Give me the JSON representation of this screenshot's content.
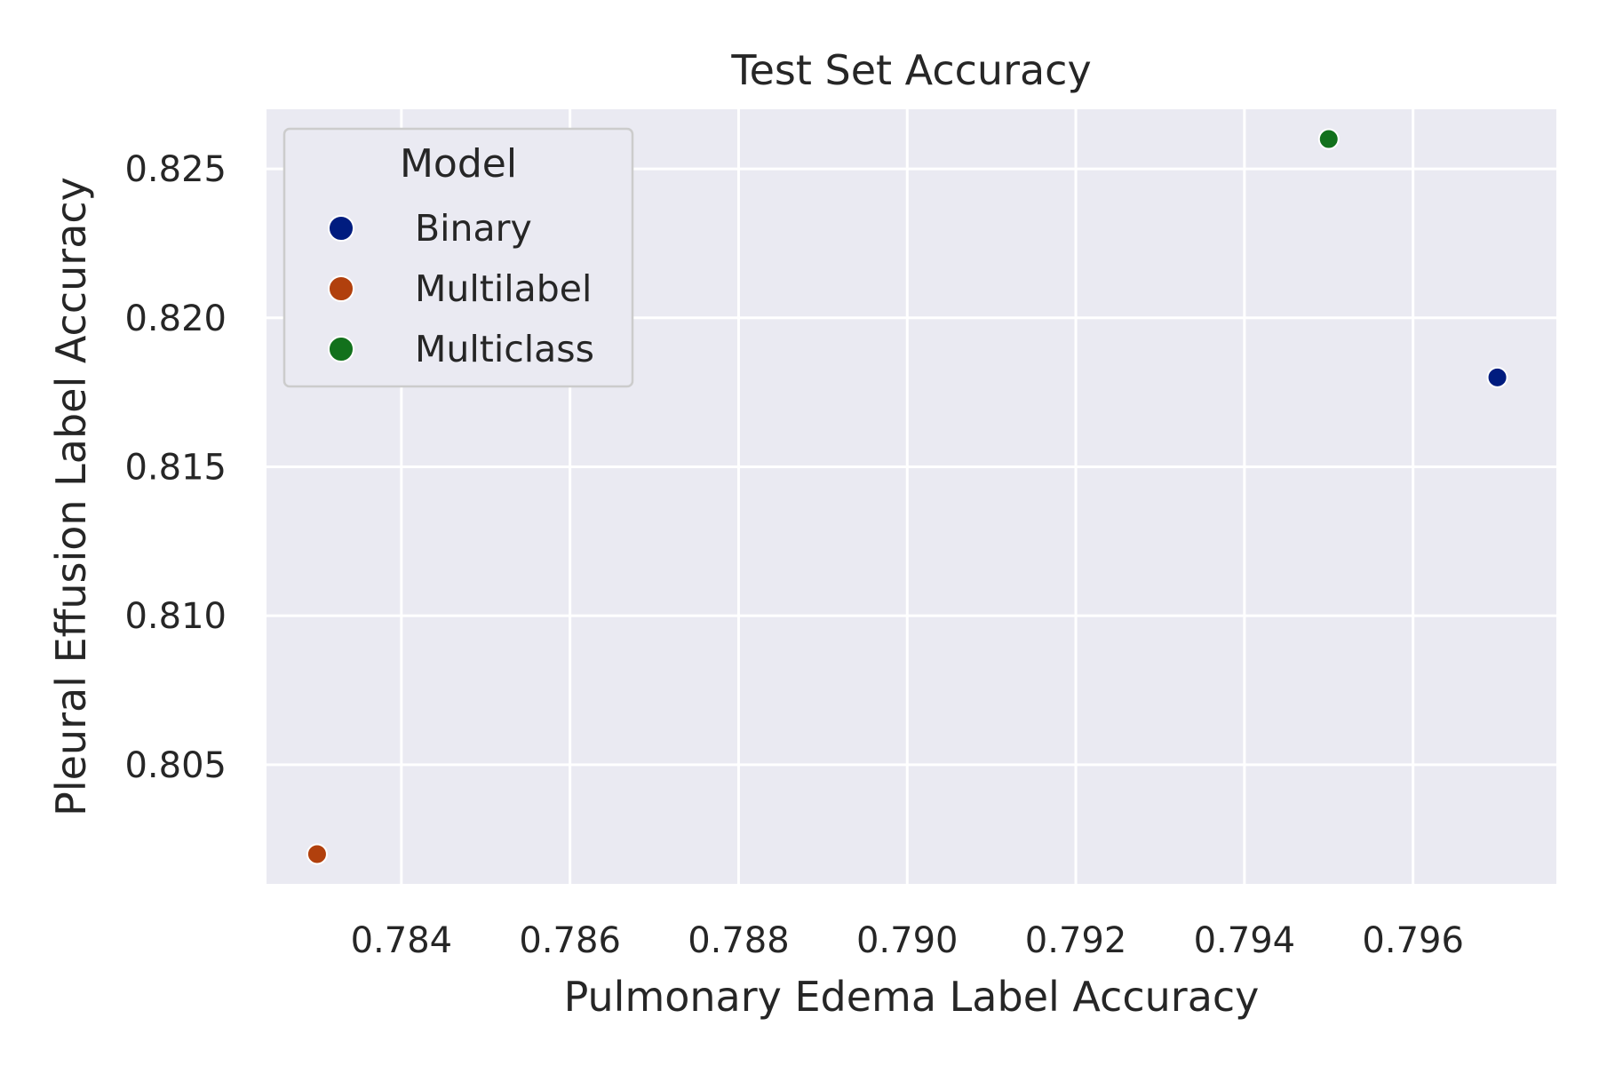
{
  "chart_data": {
    "type": "scatter",
    "title": "Test Set Accuracy",
    "xlabel": "Pulmonary Edema Label Accuracy",
    "ylabel": "Pleural Effusion Label Accuracy",
    "xlim": [
      0.7824,
      0.7977
    ],
    "ylim": [
      0.801,
      0.827
    ],
    "xticks": [
      0.784,
      0.786,
      0.788,
      0.79,
      0.792,
      0.794,
      0.796
    ],
    "xtick_labels": [
      "0.784",
      "0.786",
      "0.788",
      "0.790",
      "0.792",
      "0.794",
      "0.796"
    ],
    "yticks": [
      0.805,
      0.81,
      0.815,
      0.82,
      0.825
    ],
    "ytick_labels": [
      "0.805",
      "0.810",
      "0.815",
      "0.820",
      "0.825"
    ],
    "grid": true,
    "legend": {
      "title": "Model",
      "placement": "top-left"
    },
    "series": [
      {
        "name": "Binary",
        "color": "#001c7f",
        "x": [
          0.797
        ],
        "y": [
          0.818
        ]
      },
      {
        "name": "Multilabel",
        "color": "#b1400d",
        "x": [
          0.783
        ],
        "y": [
          0.802
        ]
      },
      {
        "name": "Multiclass",
        "color": "#12711c",
        "x": [
          0.795
        ],
        "y": [
          0.826
        ]
      }
    ]
  }
}
